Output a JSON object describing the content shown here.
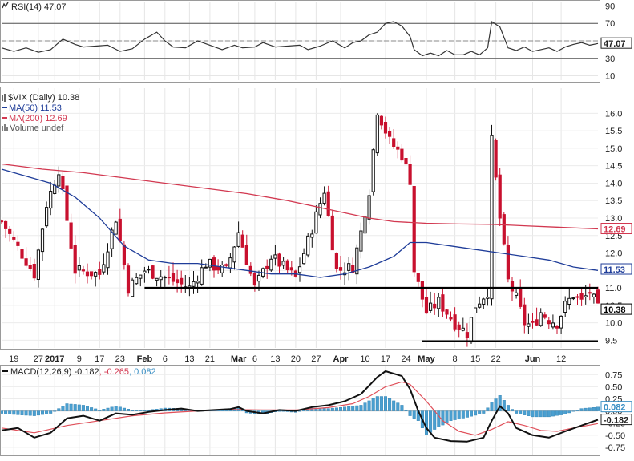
{
  "chart_data": [
    {
      "panel": "rsi",
      "type": "line",
      "title": "RSI(14) 47.07",
      "label_value": "47.07",
      "yticks": [
        10,
        30,
        50,
        70,
        90
      ],
      "ylim": [
        5,
        95
      ],
      "ref_lines": [
        30,
        70
      ],
      "x_index_range": [
        0,
        146
      ],
      "values": [
        [
          0,
          42
        ],
        [
          3,
          38
        ],
        [
          6,
          42
        ],
        [
          9,
          37
        ],
        [
          12,
          40
        ],
        [
          15,
          52
        ],
        [
          18,
          46
        ],
        [
          20,
          43
        ],
        [
          23,
          44
        ],
        [
          26,
          45
        ],
        [
          29,
          38
        ],
        [
          32,
          41
        ],
        [
          35,
          52
        ],
        [
          38,
          60
        ],
        [
          40,
          50
        ],
        [
          42,
          43
        ],
        [
          45,
          42
        ],
        [
          48,
          50
        ],
        [
          51,
          45
        ],
        [
          54,
          40
        ],
        [
          57,
          45
        ],
        [
          59,
          42
        ],
        [
          62,
          43
        ],
        [
          64,
          48
        ],
        [
          67,
          43
        ],
        [
          70,
          44
        ],
        [
          73,
          45
        ],
        [
          75,
          40
        ],
        [
          78,
          44
        ],
        [
          81,
          50
        ],
        [
          84,
          42
        ],
        [
          86,
          48
        ],
        [
          88,
          50
        ],
        [
          90,
          57
        ],
        [
          92,
          60
        ],
        [
          94,
          70
        ],
        [
          96,
          72
        ],
        [
          98,
          67
        ],
        [
          100,
          55
        ],
        [
          101,
          40
        ],
        [
          103,
          33
        ],
        [
          105,
          36
        ],
        [
          107,
          33
        ],
        [
          109,
          39
        ],
        [
          111,
          34
        ],
        [
          113,
          34
        ],
        [
          115,
          38
        ],
        [
          117,
          34
        ],
        [
          119,
          42
        ],
        [
          120,
          72
        ],
        [
          122,
          66
        ],
        [
          124,
          42
        ],
        [
          126,
          39
        ],
        [
          128,
          43
        ],
        [
          130,
          38
        ],
        [
          132,
          40
        ],
        [
          134,
          42
        ],
        [
          136,
          38
        ],
        [
          138,
          43
        ],
        [
          140,
          46
        ],
        [
          142,
          48
        ],
        [
          144,
          45
        ],
        [
          146,
          47
        ]
      ]
    },
    {
      "panel": "price",
      "type": "candlestick",
      "title": "$VIX (Daily) 10.38",
      "legend": [
        {
          "label": "MA(50) 11.53",
          "color": "#1f3d99"
        },
        {
          "label": "MA(200) 12.69",
          "color": "#d23850"
        },
        {
          "label": "Volume undef",
          "color": "#555555"
        }
      ],
      "yticks": [
        9.5,
        10.0,
        10.5,
        11.0,
        11.5,
        12.0,
        12.5,
        13.0,
        13.5,
        14.0,
        14.5,
        15.0,
        15.5,
        16.0
      ],
      "yticklabels": [
        "9.5",
        "10.0",
        "10.5",
        "11.0",
        "11.5",
        "12.0",
        "12.5",
        "13.0",
        "13.5",
        "14.0",
        "14.5",
        "15.0",
        "15.5",
        "16.0"
      ],
      "ylim": [
        9.28,
        16.72
      ],
      "x_index_range": [
        0,
        146
      ],
      "current": {
        "label": "10.38",
        "value": 10.38
      },
      "ma_labels": [
        {
          "label": "12.69",
          "value": 12.69,
          "color": "#d23850"
        },
        {
          "label": "11.53",
          "value": 11.53,
          "color": "#1f3d99"
        }
      ],
      "support_lines": [
        {
          "value": 11.0,
          "from": 35,
          "to": 146
        },
        {
          "value": 9.47,
          "from": 103,
          "to": 146
        }
      ],
      "anchors": [
        [
          0,
          12.9
        ],
        [
          8,
          11.4
        ],
        [
          11,
          13.4
        ],
        [
          14,
          14.4
        ],
        [
          18,
          11.5
        ],
        [
          24,
          11.4
        ],
        [
          28,
          13.0
        ],
        [
          31,
          11.0
        ],
        [
          35,
          11.5
        ],
        [
          40,
          11.3
        ],
        [
          46,
          11.0
        ],
        [
          50,
          11.7
        ],
        [
          55,
          11.5
        ],
        [
          58,
          12.6
        ],
        [
          62,
          11.0
        ],
        [
          66,
          11.9
        ],
        [
          72,
          11.3
        ],
        [
          76,
          12.7
        ],
        [
          79,
          13.8
        ],
        [
          82,
          11.5
        ],
        [
          86,
          11.6
        ],
        [
          88,
          12.6
        ],
        [
          90,
          13.8
        ],
        [
          92,
          16.1
        ],
        [
          95,
          15.2
        ],
        [
          98,
          14.8
        ],
        [
          100,
          14.1
        ],
        [
          101,
          11.5
        ],
        [
          104,
          10.3
        ],
        [
          107,
          10.6
        ],
        [
          109,
          10.3
        ],
        [
          111,
          10.0
        ],
        [
          114,
          9.7
        ],
        [
          116,
          10.5
        ],
        [
          119,
          10.9
        ],
        [
          120,
          15.2
        ],
        [
          122,
          13.0
        ],
        [
          124,
          11.2
        ],
        [
          126,
          10.7
        ],
        [
          128,
          10.0
        ],
        [
          130,
          9.9
        ],
        [
          132,
          10.3
        ],
        [
          134,
          10.1
        ],
        [
          136,
          10.0
        ],
        [
          138,
          10.5
        ],
        [
          140,
          10.8
        ],
        [
          142,
          10.6
        ],
        [
          144,
          10.9
        ],
        [
          146,
          10.4
        ]
      ],
      "ma50": [
        [
          0,
          14.4
        ],
        [
          6,
          14.2
        ],
        [
          12,
          14.0
        ],
        [
          18,
          13.6
        ],
        [
          24,
          13.0
        ],
        [
          30,
          12.2
        ],
        [
          36,
          11.8
        ],
        [
          42,
          11.7
        ],
        [
          48,
          11.7
        ],
        [
          54,
          11.6
        ],
        [
          60,
          11.5
        ],
        [
          66,
          11.4
        ],
        [
          72,
          11.4
        ],
        [
          78,
          11.3
        ],
        [
          84,
          11.4
        ],
        [
          90,
          11.6
        ],
        [
          96,
          11.9
        ],
        [
          100,
          12.3
        ],
        [
          104,
          12.3
        ],
        [
          110,
          12.2
        ],
        [
          116,
          12.1
        ],
        [
          122,
          12.0
        ],
        [
          128,
          11.9
        ],
        [
          134,
          11.8
        ],
        [
          140,
          11.6
        ],
        [
          146,
          11.5
        ]
      ],
      "ma200": [
        [
          0,
          14.55
        ],
        [
          10,
          14.4
        ],
        [
          20,
          14.3
        ],
        [
          30,
          14.15
        ],
        [
          40,
          14.0
        ],
        [
          50,
          13.85
        ],
        [
          60,
          13.7
        ],
        [
          70,
          13.5
        ],
        [
          80,
          13.25
        ],
        [
          90,
          13.0
        ],
        [
          96,
          12.9
        ],
        [
          104,
          12.85
        ],
        [
          112,
          12.83
        ],
        [
          120,
          12.82
        ],
        [
          128,
          12.78
        ],
        [
          136,
          12.74
        ],
        [
          146,
          12.69
        ]
      ],
      "xlabels": [
        {
          "label": "19",
          "index": 3
        },
        {
          "label": "27",
          "index": 9
        },
        {
          "label": "2017",
          "index": 13
        },
        {
          "label": "9",
          "index": 19
        },
        {
          "label": "17",
          "index": 24
        },
        {
          "label": "23",
          "index": 29
        },
        {
          "label": "Feb",
          "index": 35
        },
        {
          "label": "6",
          "index": 40
        },
        {
          "label": "13",
          "index": 46
        },
        {
          "label": "21",
          "index": 51
        },
        {
          "label": "Mar",
          "index": 58
        },
        {
          "label": "6",
          "index": 62
        },
        {
          "label": "13",
          "index": 67
        },
        {
          "label": "20",
          "index": 72
        },
        {
          "label": "27",
          "index": 77
        },
        {
          "label": "Apr",
          "index": 83
        },
        {
          "label": "10",
          "index": 89
        },
        {
          "label": "17",
          "index": 94
        },
        {
          "label": "24",
          "index": 99
        },
        {
          "label": "May",
          "index": 104
        },
        {
          "label": "8",
          "index": 111
        },
        {
          "label": "15",
          "index": 116
        },
        {
          "label": "22",
          "index": 121
        },
        {
          "label": "Jun",
          "index": 130
        },
        {
          "label": "12",
          "index": 137
        }
      ]
    },
    {
      "panel": "macd",
      "type": "line",
      "title_prefix": "MACD(12,26,9)",
      "title_values": [
        {
          "text": " -0.182",
          "color": "#222222"
        },
        {
          "text": ", -0.265",
          "color": "#d23850"
        },
        {
          "text": ", 0.082",
          "color": "#3a8fc4"
        }
      ],
      "yticks": [
        -0.75,
        -0.5,
        -0.25,
        0.0,
        0.25,
        0.5,
        0.75
      ],
      "yticklabels": [
        "-0.75",
        "-0.50",
        "-0.25",
        "0.00",
        "0.25",
        "0.50",
        "0.75"
      ],
      "ylim": [
        -0.9,
        0.92
      ],
      "x_index_range": [
        0,
        146
      ],
      "value_labels": [
        {
          "label": "0.082",
          "value": 0.082,
          "color": "#3a8fc4"
        },
        {
          "label": "-0.182",
          "value": -0.182,
          "color": "#222222"
        }
      ],
      "macd": [
        [
          0,
          -0.4
        ],
        [
          4,
          -0.35
        ],
        [
          8,
          -0.55
        ],
        [
          12,
          -0.45
        ],
        [
          16,
          -0.15
        ],
        [
          20,
          -0.1
        ],
        [
          24,
          -0.2
        ],
        [
          28,
          -0.05
        ],
        [
          32,
          -0.08
        ],
        [
          36,
          -0.02
        ],
        [
          40,
          0.02
        ],
        [
          44,
          0.05
        ],
        [
          48,
          0.0
        ],
        [
          52,
          0.02
        ],
        [
          56,
          0.04
        ],
        [
          58,
          0.08
        ],
        [
          60,
          0.0
        ],
        [
          64,
          -0.05
        ],
        [
          68,
          0.02
        ],
        [
          72,
          0.0
        ],
        [
          76,
          0.08
        ],
        [
          80,
          0.12
        ],
        [
          84,
          0.2
        ],
        [
          88,
          0.35
        ],
        [
          92,
          0.7
        ],
        [
          94,
          0.82
        ],
        [
          98,
          0.72
        ],
        [
          100,
          0.45
        ],
        [
          102,
          0.0
        ],
        [
          104,
          -0.35
        ],
        [
          106,
          -0.55
        ],
        [
          110,
          -0.62
        ],
        [
          114,
          -0.63
        ],
        [
          118,
          -0.55
        ],
        [
          120,
          -0.2
        ],
        [
          122,
          0.1
        ],
        [
          124,
          -0.05
        ],
        [
          126,
          -0.35
        ],
        [
          130,
          -0.5
        ],
        [
          134,
          -0.55
        ],
        [
          138,
          -0.42
        ],
        [
          142,
          -0.3
        ],
        [
          146,
          -0.18
        ]
      ],
      "signal": [
        [
          0,
          -0.35
        ],
        [
          8,
          -0.45
        ],
        [
          16,
          -0.3
        ],
        [
          24,
          -0.2
        ],
        [
          32,
          -0.1
        ],
        [
          40,
          -0.04
        ],
        [
          48,
          0.0
        ],
        [
          56,
          0.03
        ],
        [
          64,
          0.02
        ],
        [
          72,
          0.02
        ],
        [
          80,
          0.07
        ],
        [
          86,
          0.15
        ],
        [
          90,
          0.3
        ],
        [
          94,
          0.5
        ],
        [
          98,
          0.6
        ],
        [
          100,
          0.55
        ],
        [
          104,
          0.2
        ],
        [
          108,
          -0.2
        ],
        [
          112,
          -0.42
        ],
        [
          116,
          -0.5
        ],
        [
          120,
          -0.38
        ],
        [
          124,
          -0.22
        ],
        [
          128,
          -0.3
        ],
        [
          132,
          -0.4
        ],
        [
          136,
          -0.42
        ],
        [
          140,
          -0.35
        ],
        [
          146,
          -0.26
        ]
      ],
      "histogram": [
        [
          0,
          -0.05
        ],
        [
          4,
          -0.08
        ],
        [
          8,
          -0.1
        ],
        [
          12,
          -0.05
        ],
        [
          16,
          0.15
        ],
        [
          20,
          0.12
        ],
        [
          24,
          0.02
        ],
        [
          28,
          0.1
        ],
        [
          32,
          0.02
        ],
        [
          36,
          0.02
        ],
        [
          40,
          0.06
        ],
        [
          44,
          0.05
        ],
        [
          48,
          0.0
        ],
        [
          52,
          0.02
        ],
        [
          56,
          0.05
        ],
        [
          58,
          0.08
        ],
        [
          60,
          -0.04
        ],
        [
          64,
          -0.07
        ],
        [
          68,
          0.0
        ],
        [
          72,
          -0.03
        ],
        [
          76,
          0.06
        ],
        [
          80,
          0.05
        ],
        [
          84,
          0.08
        ],
        [
          88,
          0.12
        ],
        [
          92,
          0.3
        ],
        [
          94,
          0.3
        ],
        [
          98,
          0.12
        ],
        [
          100,
          -0.1
        ],
        [
          102,
          -0.2
        ],
        [
          104,
          -0.5
        ],
        [
          106,
          -0.38
        ],
        [
          110,
          -0.2
        ],
        [
          114,
          -0.13
        ],
        [
          118,
          -0.05
        ],
        [
          120,
          0.18
        ],
        [
          122,
          0.32
        ],
        [
          124,
          0.12
        ],
        [
          126,
          -0.05
        ],
        [
          130,
          -0.12
        ],
        [
          134,
          -0.12
        ],
        [
          138,
          -0.07
        ],
        [
          142,
          0.05
        ],
        [
          146,
          0.08
        ]
      ]
    }
  ]
}
